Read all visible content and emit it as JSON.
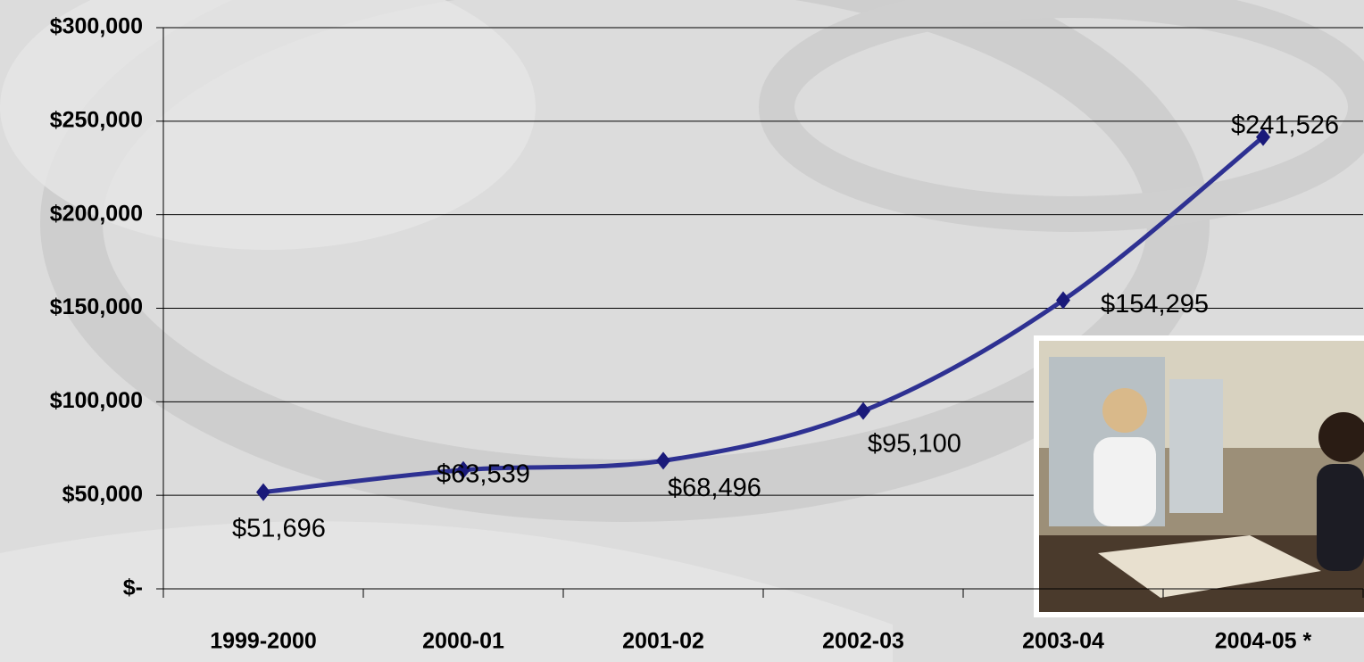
{
  "chart_data": {
    "type": "line",
    "categories": [
      "1999-2000",
      "2000-01",
      "2001-02",
      "2002-03",
      "2003-04",
      "2004-05 *"
    ],
    "series": [
      {
        "color": "#2e3192",
        "values": [
          51696,
          63539,
          68496,
          95100,
          154295,
          241526
        ],
        "value_labels": [
          "$51,696",
          "$63,539",
          "$68,496",
          "$95,100",
          "$154,295",
          "$241,526"
        ]
      }
    ],
    "ylim": [
      0,
      300000
    ],
    "yticks": [
      {
        "value": 0,
        "label": "$-"
      },
      {
        "value": 50000,
        "label": "$50,000"
      },
      {
        "value": 100000,
        "label": "$100,000"
      },
      {
        "value": 150000,
        "label": "$150,000"
      },
      {
        "value": 200000,
        "label": "$200,000"
      },
      {
        "value": 250000,
        "label": "$250,000"
      },
      {
        "value": 300000,
        "label": "$300,000"
      }
    ],
    "grid": true
  }
}
